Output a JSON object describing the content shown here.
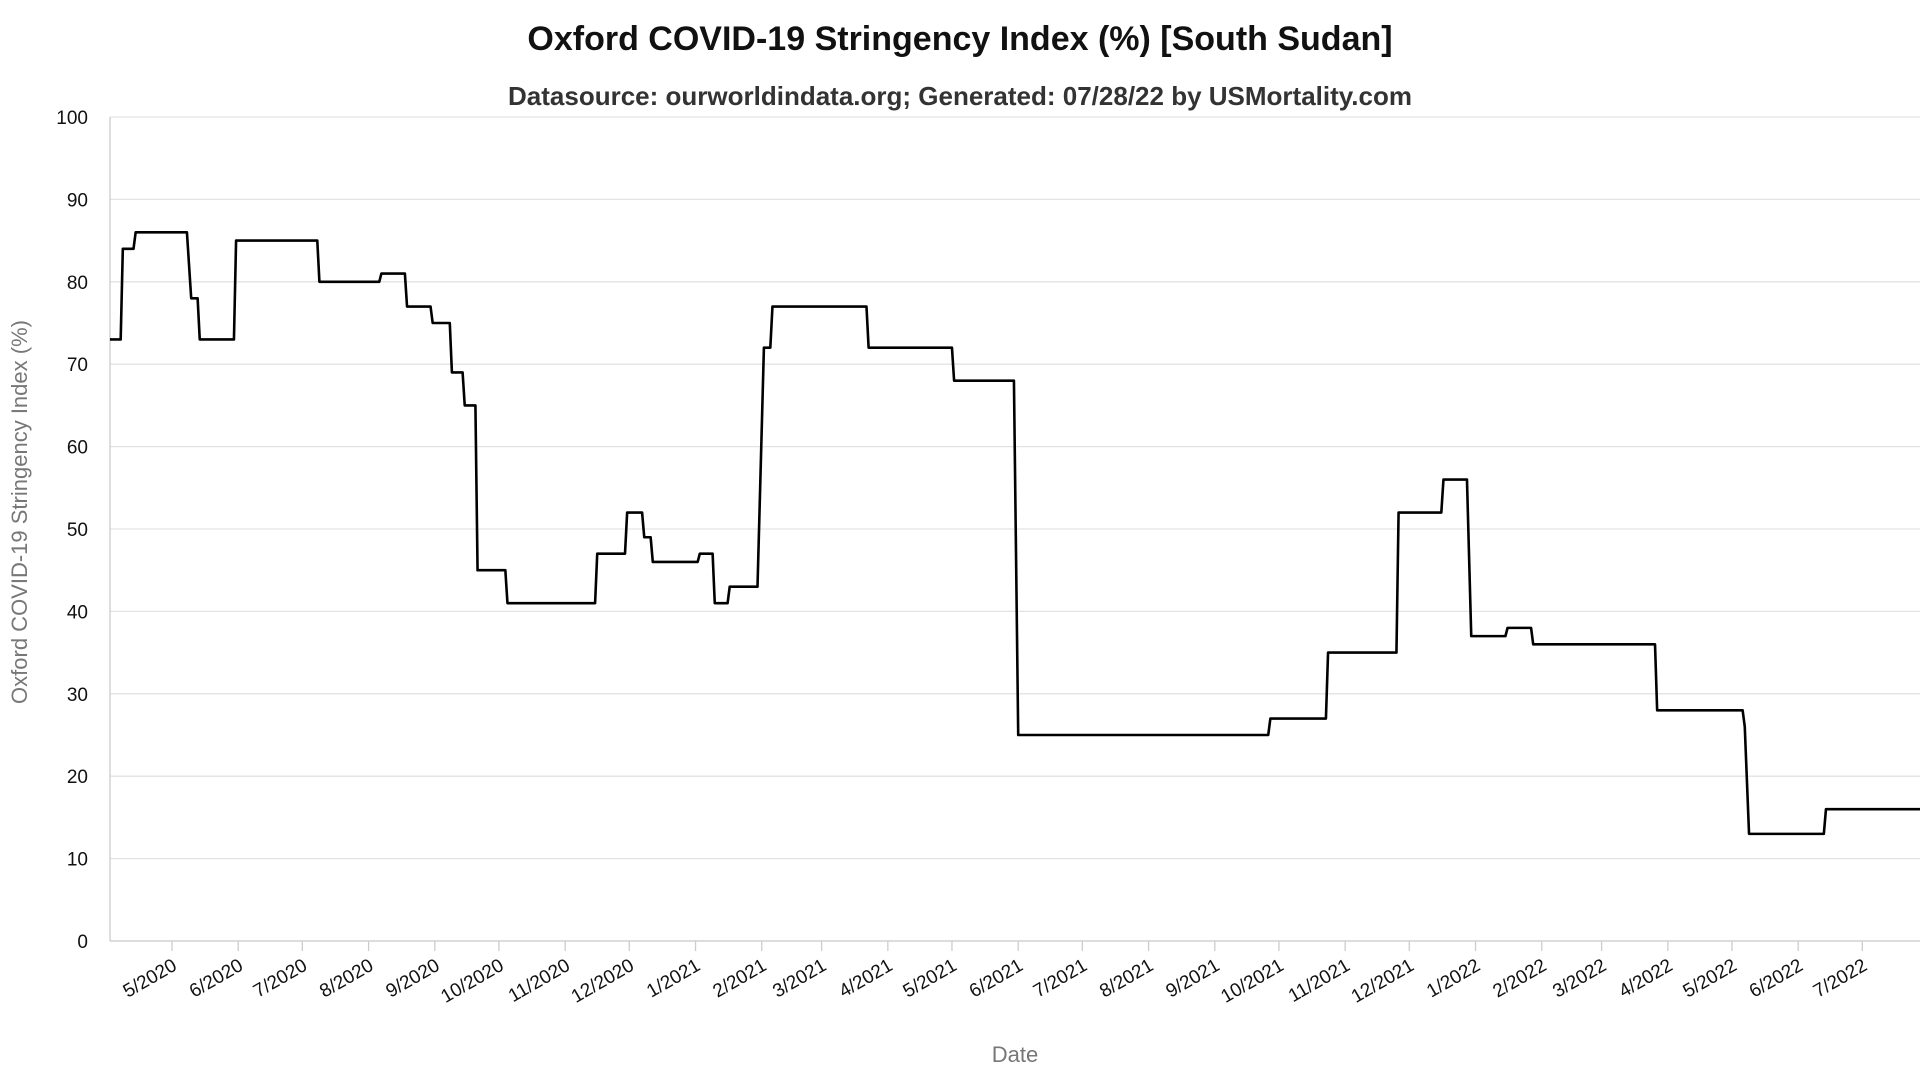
{
  "chart_data": {
    "type": "line",
    "title": "Oxford COVID-19 Stringency Index (%) [South Sudan]",
    "subtitle": "Datasource: ourworldindata.org; Generated: 07/28/22 by USMortality.com",
    "xlabel": "Date",
    "ylabel": "Oxford COVID-19 Stringency Index (%)",
    "ylim": [
      0,
      100
    ],
    "yticks": [
      0,
      10,
      20,
      30,
      40,
      50,
      60,
      70,
      80,
      90,
      100
    ],
    "xlim": [
      "2020-04-02",
      "2022-07-28"
    ],
    "xticks": [
      {
        "date": "2020-05-01",
        "label": "5/2020"
      },
      {
        "date": "2020-06-01",
        "label": "6/2020"
      },
      {
        "date": "2020-07-01",
        "label": "7/2020"
      },
      {
        "date": "2020-08-01",
        "label": "8/2020"
      },
      {
        "date": "2020-09-01",
        "label": "9/2020"
      },
      {
        "date": "2020-10-01",
        "label": "10/2020"
      },
      {
        "date": "2020-11-01",
        "label": "11/2020"
      },
      {
        "date": "2020-12-01",
        "label": "12/2020"
      },
      {
        "date": "2021-01-01",
        "label": "1/2021"
      },
      {
        "date": "2021-02-01",
        "label": "2/2021"
      },
      {
        "date": "2021-03-01",
        "label": "3/2021"
      },
      {
        "date": "2021-04-01",
        "label": "4/2021"
      },
      {
        "date": "2021-05-01",
        "label": "5/2021"
      },
      {
        "date": "2021-06-01",
        "label": "6/2021"
      },
      {
        "date": "2021-07-01",
        "label": "7/2021"
      },
      {
        "date": "2021-08-01",
        "label": "8/2021"
      },
      {
        "date": "2021-09-01",
        "label": "9/2021"
      },
      {
        "date": "2021-10-01",
        "label": "10/2021"
      },
      {
        "date": "2021-11-01",
        "label": "11/2021"
      },
      {
        "date": "2021-12-01",
        "label": "12/2021"
      },
      {
        "date": "2022-01-01",
        "label": "1/2022"
      },
      {
        "date": "2022-02-01",
        "label": "2/2022"
      },
      {
        "date": "2022-03-01",
        "label": "3/2022"
      },
      {
        "date": "2022-04-01",
        "label": "4/2022"
      },
      {
        "date": "2022-05-01",
        "label": "5/2022"
      },
      {
        "date": "2022-06-01",
        "label": "6/2022"
      },
      {
        "date": "2022-07-01",
        "label": "7/2022"
      }
    ],
    "grid": true,
    "series_color": "#000000",
    "series": [
      {
        "points": [
          [
            "2020-04-02",
            73
          ],
          [
            "2020-04-07",
            73
          ],
          [
            "2020-04-08",
            84
          ],
          [
            "2020-04-13",
            84
          ],
          [
            "2020-04-14",
            86
          ],
          [
            "2020-05-08",
            86
          ],
          [
            "2020-05-10",
            78
          ],
          [
            "2020-05-13",
            78
          ],
          [
            "2020-05-14",
            73
          ],
          [
            "2020-05-30",
            73
          ],
          [
            "2020-05-31",
            85
          ],
          [
            "2020-07-08",
            85
          ],
          [
            "2020-07-09",
            80
          ],
          [
            "2020-08-06",
            80
          ],
          [
            "2020-08-07",
            81
          ],
          [
            "2020-08-18",
            81
          ],
          [
            "2020-08-19",
            77
          ],
          [
            "2020-08-30",
            77
          ],
          [
            "2020-08-31",
            75
          ],
          [
            "2020-09-08",
            75
          ],
          [
            "2020-09-09",
            69
          ],
          [
            "2020-09-14",
            69
          ],
          [
            "2020-09-15",
            65
          ],
          [
            "2020-09-20",
            65
          ],
          [
            "2020-09-21",
            45
          ],
          [
            "2020-10-04",
            45
          ],
          [
            "2020-10-05",
            41
          ],
          [
            "2020-11-15",
            41
          ],
          [
            "2020-11-16",
            47
          ],
          [
            "2020-11-29",
            47
          ],
          [
            "2020-11-30",
            52
          ],
          [
            "2020-12-07",
            52
          ],
          [
            "2020-12-08",
            49
          ],
          [
            "2020-12-11",
            49
          ],
          [
            "2020-12-12",
            46
          ],
          [
            "2021-01-02",
            46
          ],
          [
            "2021-01-03",
            47
          ],
          [
            "2021-01-09",
            47
          ],
          [
            "2021-01-10",
            41
          ],
          [
            "2021-01-16",
            41
          ],
          [
            "2021-01-17",
            43
          ],
          [
            "2021-01-30",
            43
          ],
          [
            "2021-02-02",
            72
          ],
          [
            "2021-02-05",
            72
          ],
          [
            "2021-02-06",
            77
          ],
          [
            "2021-03-22",
            77
          ],
          [
            "2021-03-23",
            72
          ],
          [
            "2021-05-01",
            72
          ],
          [
            "2021-05-02",
            68
          ],
          [
            "2021-05-30",
            68
          ],
          [
            "2021-06-01",
            25
          ],
          [
            "2021-09-26",
            25
          ],
          [
            "2021-09-27",
            27
          ],
          [
            "2021-10-23",
            27
          ],
          [
            "2021-10-24",
            35
          ],
          [
            "2021-11-25",
            35
          ],
          [
            "2021-11-26",
            52
          ],
          [
            "2021-12-16",
            52
          ],
          [
            "2021-12-17",
            56
          ],
          [
            "2021-12-28",
            56
          ],
          [
            "2021-12-30",
            37
          ],
          [
            "2022-01-15",
            37
          ],
          [
            "2022-01-16",
            38
          ],
          [
            "2022-01-27",
            38
          ],
          [
            "2022-01-28",
            36
          ],
          [
            "2022-03-26",
            36
          ],
          [
            "2022-03-27",
            28
          ],
          [
            "2022-05-06",
            28
          ],
          [
            "2022-05-07",
            26
          ],
          [
            "2022-05-09",
            13
          ],
          [
            "2022-06-13",
            13
          ],
          [
            "2022-06-14",
            16
          ],
          [
            "2022-07-28",
            16
          ]
        ]
      }
    ]
  }
}
